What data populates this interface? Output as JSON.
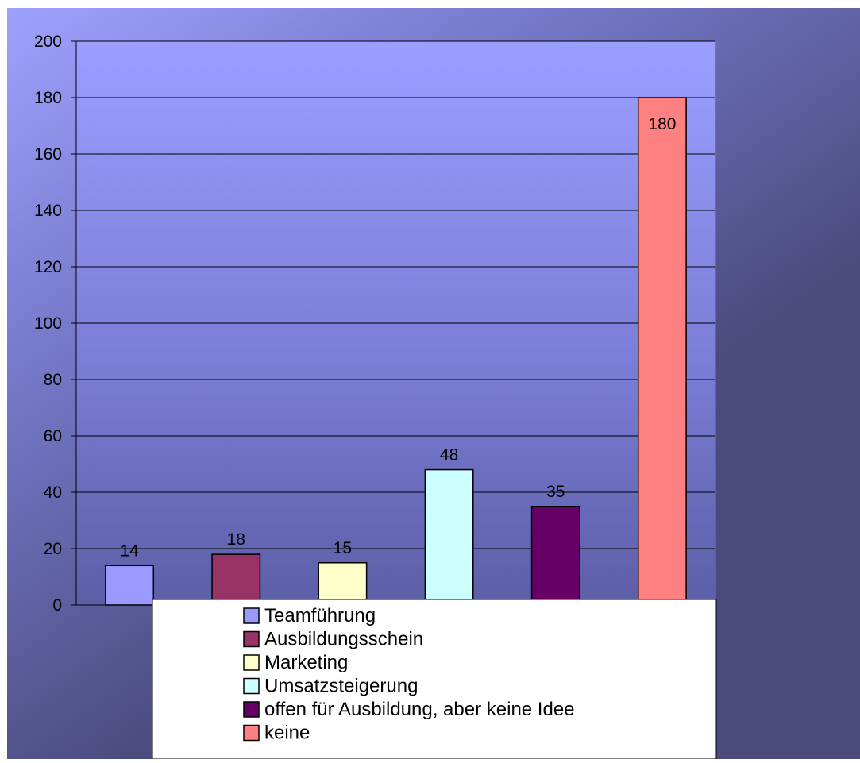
{
  "chart_data": {
    "type": "bar",
    "title": "",
    "xlabel": "",
    "ylabel": "",
    "ylim": [
      0,
      200
    ],
    "yticks": [
      0,
      20,
      40,
      60,
      80,
      100,
      120,
      140,
      160,
      180,
      200
    ],
    "grid": true,
    "legend_position": "bottom",
    "categories": [
      "Teamführung",
      "Ausbildungsschein",
      "Marketing",
      "Umsatzsteigerung",
      "offen für Ausbildung, aber keine Idee",
      "keine"
    ],
    "values": [
      14,
      18,
      15,
      48,
      35,
      180
    ],
    "data_labels": [
      "14",
      "18",
      "15",
      "48",
      "35",
      "180"
    ],
    "colors": [
      "#9999ff",
      "#993366",
      "#ffffcc",
      "#ccffff",
      "#660066",
      "#ff8080"
    ]
  }
}
